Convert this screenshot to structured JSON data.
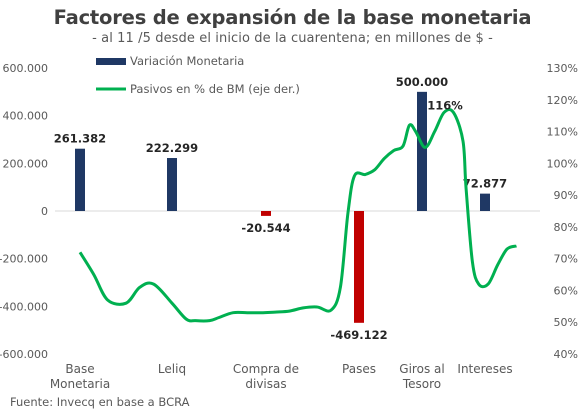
{
  "title": "Factores de expansión de la base monetaria",
  "subtitle": "- al 11 /5 desde el inicio de la cuarentena; en millones de $ -",
  "source": "Fuente: Invecq en base a BCRA",
  "colors": {
    "bar_positive": "#1f3864",
    "bar_negative": "#c00000",
    "line": "#00b050",
    "text": "#595959"
  },
  "chart_data": {
    "type": "bar",
    "categories": [
      [
        "Base",
        "Monetaria"
      ],
      [
        "Leliq"
      ],
      [
        "Compra de",
        "divisas"
      ],
      [
        "Pases"
      ],
      [
        "Giros al",
        "Tesoro"
      ],
      [
        "Intereses"
      ]
    ],
    "series": [
      {
        "name": "Variación Monetaria",
        "type": "bar",
        "axis": "left",
        "values": [
          261382,
          222299,
          -20544,
          -469122,
          500000,
          72877
        ],
        "data_labels": [
          "261.382",
          "222.299",
          "-20.544",
          "-469.122",
          "500.000",
          "72.877"
        ]
      },
      {
        "name": "Pasivos en % de BM (eje der.)",
        "type": "line",
        "axis": "right",
        "x": [
          0,
          0.15,
          0.3,
          0.5,
          0.65,
          0.8,
          1.0,
          1.15,
          1.25,
          1.4,
          1.5,
          1.65,
          1.8,
          1.95,
          2.1,
          2.25,
          2.4,
          2.55,
          2.7,
          2.8,
          2.88,
          2.95,
          3.1,
          3.25,
          3.4,
          3.55,
          3.7,
          3.8,
          3.9,
          4.05,
          4.2,
          4.35,
          4.5,
          4.65,
          4.7,
          4.8,
          4.9,
          5.05,
          5.2,
          5.35,
          5.5
        ],
        "values": [
          72,
          65,
          57,
          56,
          61,
          62,
          56,
          51,
          50.5,
          50.5,
          51.5,
          53,
          53,
          53,
          53.2,
          53.5,
          54.5,
          54.8,
          53.8,
          61,
          84,
          96,
          96.5,
          98,
          101.5,
          104,
          105.5,
          112,
          110,
          105,
          110,
          116,
          116,
          107,
          92,
          69,
          62,
          62,
          68,
          73,
          74
        ]
      }
    ],
    "annotations": [
      "116%"
    ],
    "y_left": {
      "min": -600000,
      "max": 600000,
      "ticks": [
        "600.000",
        "400.000",
        "200.000",
        "0",
        "-200.000",
        "-400.000",
        "-600.000"
      ]
    },
    "y_right": {
      "min": 40,
      "max": 130,
      "ticks": [
        "130%",
        "120%",
        "110%",
        "100%",
        "90%",
        "80%",
        "70%",
        "60%",
        "50%",
        "40%"
      ]
    },
    "grid": false,
    "legend_position": "top-left"
  }
}
